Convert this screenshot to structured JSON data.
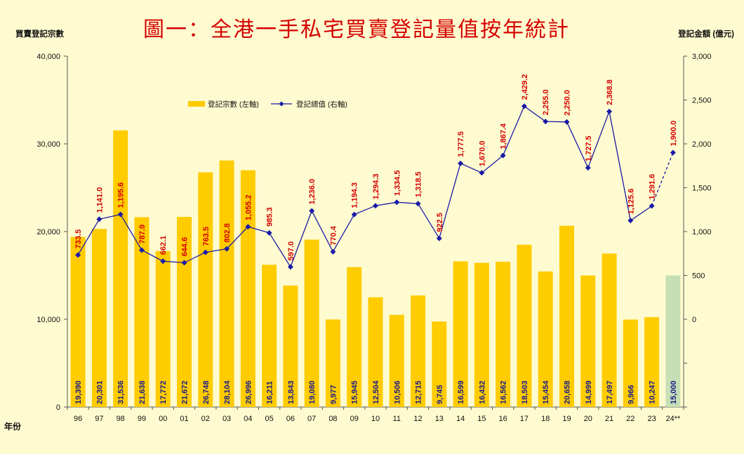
{
  "chart_data": {
    "type": "bar+line",
    "title": "圖一：全港一手私宅買賣登記量值按年統計",
    "ylabel_left": "買賣登記宗數",
    "ylabel_right": "登記金額 (億元)",
    "xlabel": "年份",
    "left_axis": {
      "min": 0,
      "max": 40000,
      "ticks": [
        0,
        10000,
        20000,
        30000,
        40000
      ],
      "tick_labels": [
        "0",
        "10,000",
        "20,000",
        "30,000",
        "40,000"
      ]
    },
    "right_axis": {
      "min": -1000,
      "max": 3000,
      "ticks": [
        0,
        500,
        1000,
        1500,
        2000,
        2500,
        3000
      ],
      "tick_labels": [
        "0",
        "500",
        "1,000",
        "1,500",
        "2,000",
        "2,500",
        "3,000"
      ]
    },
    "categories": [
      "96",
      "97",
      "98",
      "99",
      "00",
      "01",
      "02",
      "03",
      "04",
      "05",
      "06",
      "07",
      "08",
      "09",
      "10",
      "11",
      "12",
      "13",
      "14",
      "15",
      "16",
      "17",
      "18",
      "19",
      "20",
      "21",
      "22",
      "23",
      "24**"
    ],
    "series": [
      {
        "name": "登記宗數 (左軸)",
        "type": "bar",
        "axis": "left",
        "color": "#ffcc00",
        "forecast_color": "#c6dfb4",
        "values": [
          19390,
          20301,
          31536,
          21638,
          17772,
          21672,
          26748,
          28104,
          26996,
          16211,
          13843,
          19080,
          9977,
          15945,
          12504,
          10506,
          12715,
          9745,
          16599,
          16432,
          16562,
          18503,
          15454,
          20658,
          14999,
          17497,
          9966,
          10247,
          15000
        ],
        "labels": [
          "19,390",
          "20,301",
          "31,536",
          "21,638",
          "17,772",
          "21,672",
          "26,748",
          "28,104",
          "26,996",
          "16,211",
          "13,843",
          "19,080",
          "9,977",
          "15,945",
          "12,504",
          "10,506",
          "12,715",
          "9,745",
          "16,599",
          "16,432",
          "16,562",
          "18,503",
          "15,454",
          "20,658",
          "14,999",
          "17,497",
          "9,966",
          "10,247",
          "15,000"
        ]
      },
      {
        "name": "登記總值 (右軸)",
        "type": "line",
        "axis": "right",
        "color": "#1a1aa6",
        "label_color": "#d40000",
        "values": [
          733.5,
          1141.0,
          1195.6,
          787.9,
          662.1,
          644.6,
          763.5,
          802.8,
          1055.2,
          985.3,
          597.0,
          1236.0,
          770.4,
          1194.3,
          1294.3,
          1334.5,
          1318.5,
          922.5,
          1777.5,
          1670.0,
          1867.4,
          2429.2,
          2255.0,
          2250.0,
          1727.5,
          2368.8,
          1125.6,
          1291.6,
          1900.0
        ],
        "labels": [
          "733.5",
          "1,141.0",
          "1,195.6",
          "787.9",
          "662.1",
          "644.6",
          "763.5",
          "802.8",
          "1,055.2",
          "985.3",
          "597.0",
          "1,236.0",
          "770.4",
          "1,194.3",
          "1,294.3",
          "1,334.5",
          "1,318.5",
          "922.5",
          "1,777.5",
          "1,670.0",
          "1,867.4",
          "2,429.2",
          "2,255.0",
          "2,250.0",
          "1,727.5",
          "2,368.8",
          "1,125.6",
          "1,291.6",
          "1,900.0"
        ]
      }
    ],
    "forecast_index": 28,
    "legend_position": "top-left"
  }
}
